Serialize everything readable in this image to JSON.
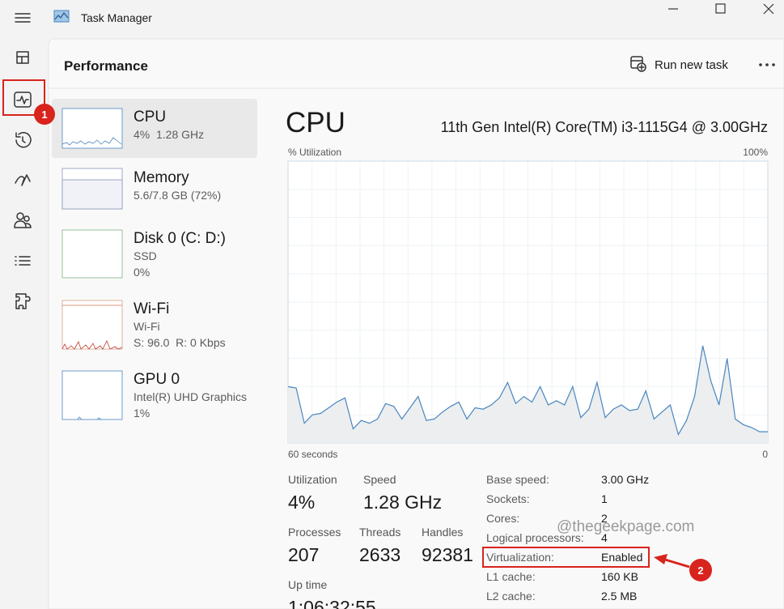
{
  "titlebar": {
    "title": "Task Manager"
  },
  "header": {
    "title": "Performance",
    "run_new_task": "Run new task"
  },
  "devices": [
    {
      "name": "CPU",
      "lines": [
        "4%",
        "1.28 GHz"
      ]
    },
    {
      "name": "Memory",
      "lines": [
        "5.6/7.8 GB (72%)"
      ]
    },
    {
      "name": "Disk 0 (C: D:)",
      "lines": [
        "SSD",
        "0%"
      ]
    },
    {
      "name": "Wi-Fi",
      "lines": [
        "Wi-Fi",
        "S: 96.0  R: 0 Kbps"
      ]
    },
    {
      "name": "GPU 0",
      "lines": [
        "Intel(R) UHD Graphics",
        "1%"
      ]
    }
  ],
  "cpu": {
    "title": "CPU",
    "model": "11th Gen Intel(R) Core(TM) i3-1115G4 @ 3.00GHz",
    "graph": {
      "type": "area",
      "y_label": "% Utilization",
      "ylim": [
        0,
        100
      ],
      "yticks": [
        {
          "value": 100,
          "label": "100%"
        }
      ],
      "xlim": [
        60,
        0
      ],
      "xticks": [
        {
          "value": 60,
          "label": "60 seconds"
        },
        0
      ],
      "color": "#4a86c0",
      "fill": "#eceeef",
      "values": [
        20,
        19.5,
        7,
        10,
        10.5,
        12.5,
        14.5,
        16,
        5,
        8,
        7,
        8.5,
        14,
        13,
        8.5,
        12.5,
        16.5,
        8,
        8.5,
        11,
        13,
        14.5,
        8.5,
        12.5,
        12,
        13.5,
        16,
        21.5,
        14,
        16.5,
        14.5,
        20,
        13.5,
        15,
        13.5,
        20,
        9,
        12,
        21.5,
        9,
        12,
        13.5,
        11.5,
        12,
        18.5,
        8.5,
        11,
        13.5,
        3,
        8,
        16.5,
        34.5,
        22,
        13.5,
        30,
        8.5,
        6.5,
        5.5,
        4,
        4
      ]
    },
    "stats": [
      {
        "label": "Utilization",
        "value": "4%"
      },
      {
        "label": "Speed",
        "value": "1.28 GHz"
      },
      {
        "label": "Processes",
        "value": "207"
      },
      {
        "label": "Threads",
        "value": "2633"
      },
      {
        "label": "Handles",
        "value": "92381"
      },
      {
        "label": "Up time",
        "value": "1:06:32:55"
      }
    ],
    "details": [
      [
        "Base speed:",
        "3.00 GHz"
      ],
      [
        "Sockets:",
        "1"
      ],
      [
        "Cores:",
        "2"
      ],
      [
        "Logical processors:",
        "4"
      ],
      [
        "Virtualization:",
        "Enabled"
      ],
      [
        "L1 cache:",
        "160 KB"
      ],
      [
        "L2 cache:",
        "2.5 MB"
      ]
    ]
  },
  "annotations": {
    "step1": "1",
    "step2": "2",
    "watermark": "@thegeekpage.com"
  }
}
